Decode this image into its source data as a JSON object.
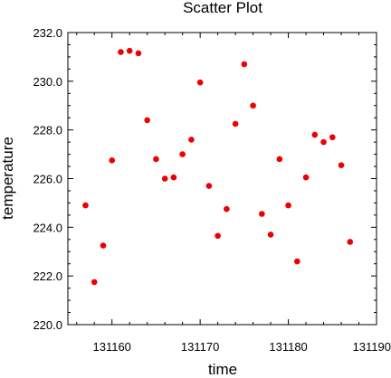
{
  "chart_data": {
    "type": "scatter",
    "title": "Scatter Plot",
    "xlabel": "time",
    "ylabel": "temperature",
    "xlim": [
      131155,
      131190
    ],
    "ylim": [
      220.0,
      232.0
    ],
    "x_ticks": [
      131160,
      131170,
      131180,
      131190
    ],
    "x_tick_labels": [
      "131160",
      "131170",
      "131180",
      "131190"
    ],
    "y_ticks": [
      220.0,
      222.0,
      224.0,
      226.0,
      228.0,
      230.0,
      232.0
    ],
    "y_tick_labels": [
      "220.0",
      "222.0",
      "224.0",
      "226.0",
      "228.0",
      "230.0",
      "232.0"
    ],
    "x_minor_step": 2,
    "y_minor_step": 0.5,
    "marker_color": "#ee0000",
    "grid": false,
    "legend": "none",
    "series": [
      {
        "x": [
          131157,
          131158,
          131159,
          131160,
          131161,
          131162,
          131163,
          131164,
          131165,
          131166,
          131167,
          131168,
          131169,
          131170,
          131171,
          131172,
          131173,
          131174,
          131175,
          131176,
          131177,
          131178,
          131179,
          131180,
          131181,
          131182,
          131183,
          131184,
          131185,
          131186,
          131187
        ],
        "y": [
          224.9,
          221.75,
          223.25,
          226.75,
          231.2,
          231.25,
          231.15,
          228.4,
          226.8,
          226.0,
          226.05,
          227.0,
          227.6,
          229.95,
          225.7,
          223.65,
          224.75,
          228.25,
          230.7,
          229.0,
          224.55,
          223.7,
          226.8,
          224.9,
          222.6,
          226.05,
          227.8,
          227.5,
          227.7,
          226.55,
          223.4
        ]
      }
    ]
  }
}
